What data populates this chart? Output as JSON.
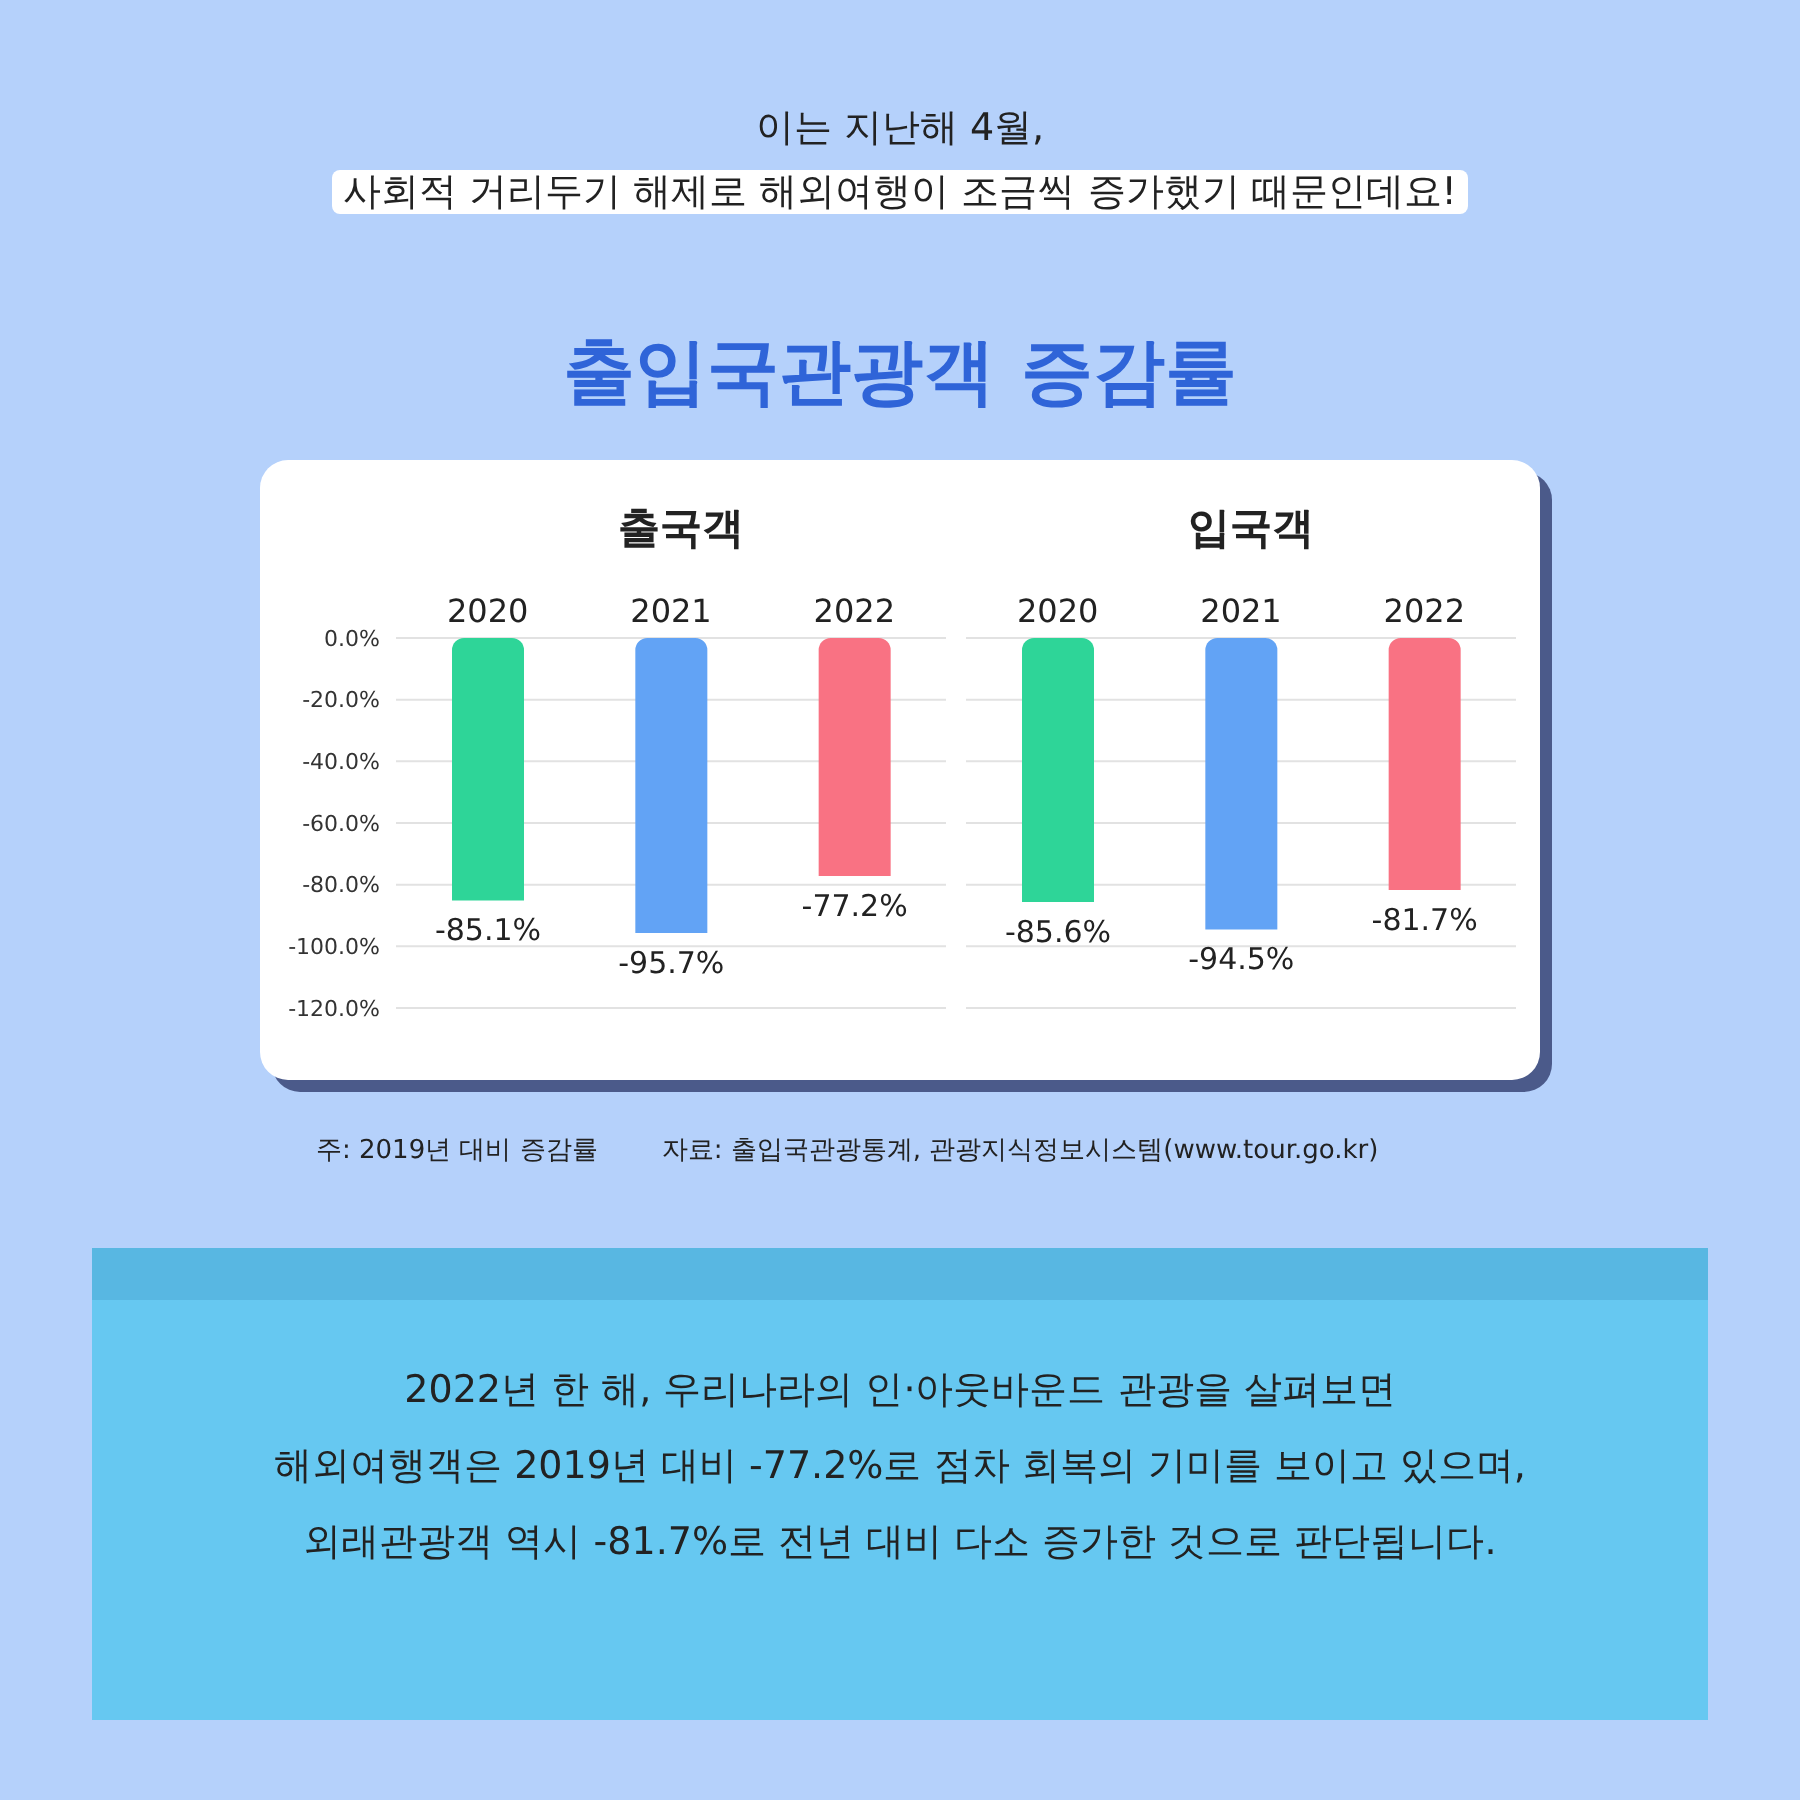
{
  "chart_data": [
    {
      "type": "bar",
      "title": "출국객",
      "categories": [
        "2020",
        "2021",
        "2022"
      ],
      "values": [
        -85.1,
        -95.7,
        -77.2
      ],
      "colors": [
        "#2ed598",
        "#62a3f5",
        "#f97283"
      ],
      "value_labels": [
        "-85.1%",
        "-95.7%",
        "-77.2%"
      ],
      "ylim": [
        -120,
        0
      ],
      "yticks": [
        {
          "value": 0,
          "label": "0.0%"
        },
        {
          "value": -20,
          "label": "-20.0%"
        },
        {
          "value": -40,
          "label": "-40.0%"
        },
        {
          "value": -60,
          "label": "-60.0%"
        },
        {
          "value": -80,
          "label": "-80.0%"
        },
        {
          "value": -100,
          "label": "-100.0%"
        },
        {
          "value": -120,
          "label": "-120.0%"
        }
      ],
      "grid": "y",
      "legend": false,
      "annotations": [
        "이는 지난해 4월,",
        "사회적 거리두기 해제로 해외여행이 조금씩 증가했기 때문인데요!",
        "출입국관광객 증감률",
        "주: 2019년 대비 증감률",
        "자료: 출입국관광통계, 관광지식정보시스템(www.tour.go.kr)",
        "2022년 한 해, 우리나라의 인·아웃바운드 관광을 살펴보면",
        "해외여행객은 2019년 대비 -77.2%로 점차 회복의 기미를 보이고 있으며,",
        "외래관광객 역시 -81.7%로 전년 대비 다소 증가한 것으로 판단됩니다."
      ]
    },
    {
      "type": "bar",
      "title": "입국객",
      "categories": [
        "2020",
        "2021",
        "2022"
      ],
      "values": [
        -85.6,
        -94.5,
        -81.7
      ],
      "colors": [
        "#2ed598",
        "#62a3f5",
        "#f97283"
      ],
      "value_labels": [
        "-85.6%",
        "-94.5%",
        "-81.7%"
      ],
      "ylim": [
        -120,
        0
      ],
      "yticks": [
        {
          "value": 0,
          "label": null
        },
        {
          "value": -20,
          "label": null
        },
        {
          "value": -40,
          "label": null
        },
        {
          "value": -60,
          "label": null
        },
        {
          "value": -80,
          "label": null
        },
        {
          "value": -100,
          "label": null
        },
        {
          "value": -120,
          "label": null
        }
      ],
      "grid": "y",
      "legend": false,
      "tick_labels": "x"
    }
  ]
}
